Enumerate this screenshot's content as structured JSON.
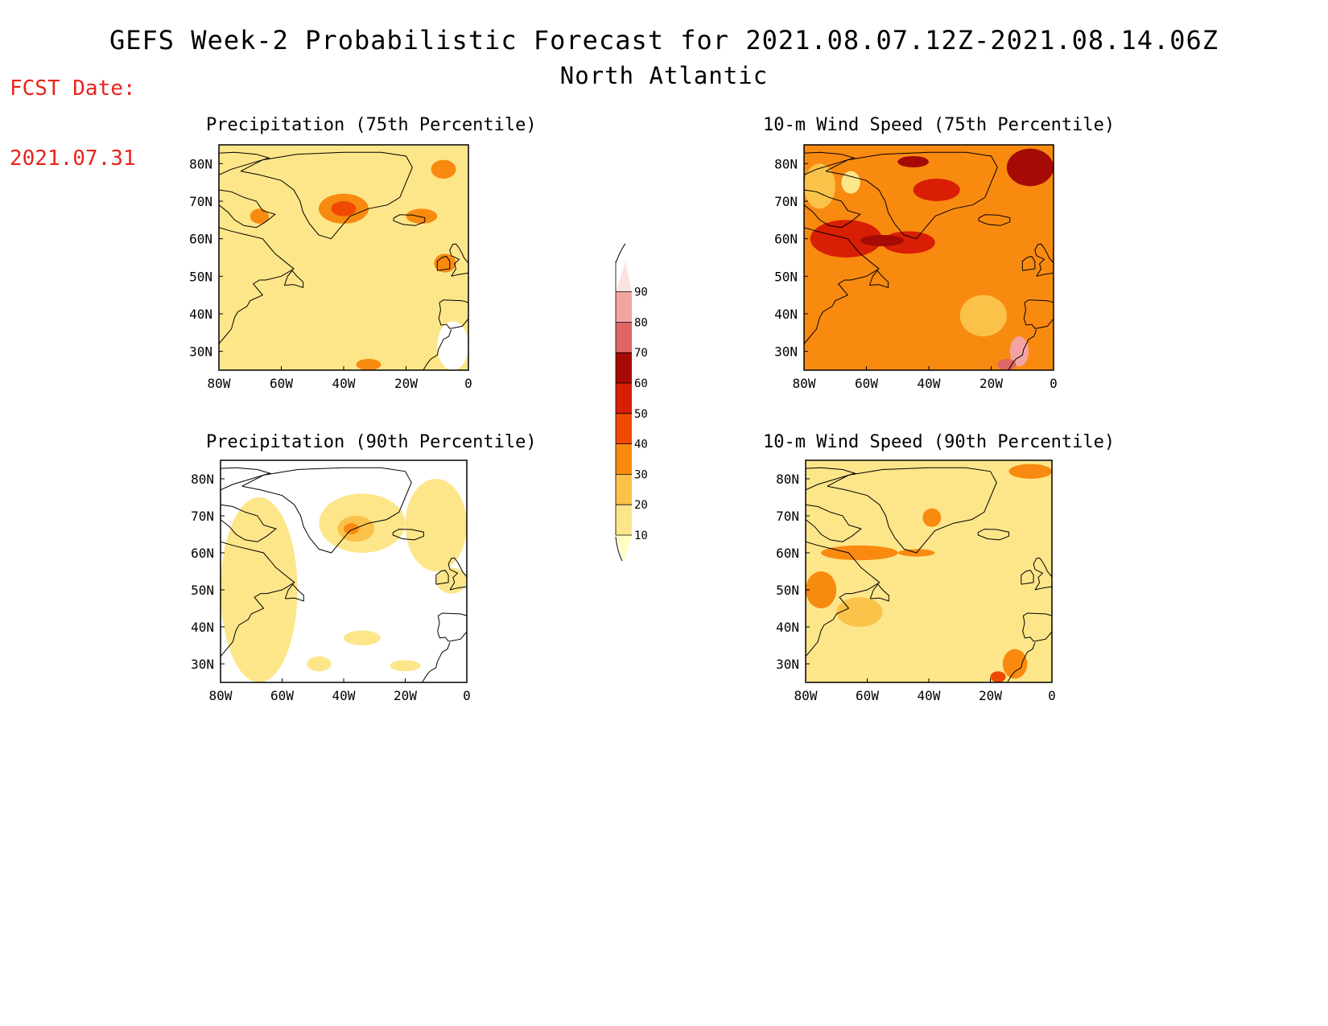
{
  "header": {
    "fcst_label": "FCST Date:",
    "fcst_date": "2021.07.31",
    "title": "GEFS Week-2 Probabilistic Forecast for 2021.08.07.12Z-2021.08.14.06Z",
    "region": "North Atlantic"
  },
  "axes": {
    "lat_labels": [
      "80N",
      "70N",
      "60N",
      "50N",
      "40N",
      "30N"
    ],
    "lat_values": [
      80,
      70,
      60,
      50,
      40,
      30
    ],
    "lon_labels": [
      "80W",
      "60W",
      "40W",
      "20W",
      "0"
    ],
    "lon_values": [
      -80,
      -60,
      -40,
      -20,
      0
    ],
    "lat_range": [
      25,
      85
    ],
    "lon_range": [
      -80,
      0
    ]
  },
  "colorbar": {
    "labels": [
      "10",
      "20",
      "30",
      "40",
      "50",
      "60",
      "70",
      "80",
      "90"
    ],
    "levels": [
      10,
      20,
      30,
      40,
      50,
      60,
      70,
      80,
      90
    ],
    "colors": [
      "#fffdc0",
      "#fde68a",
      "#fbc24a",
      "#f98a10",
      "#f04a02",
      "#d81e05",
      "#a50b04",
      "#e06666",
      "#f4a3a3",
      "#fde2e2"
    ]
  },
  "panels": {
    "precip75": {
      "title": "Precipitation (75th Percentile)",
      "base": "#fde68a",
      "regions": [
        {
          "lon": [
            -80,
            -50
          ],
          "lat": [
            40,
            60
          ],
          "level": 10
        },
        {
          "lon": [
            -55,
            -25
          ],
          "lat": [
            44,
            56
          ],
          "level": 10
        },
        {
          "lon": [
            -60,
            -20
          ],
          "lat": [
            33,
            40
          ],
          "level": 10
        },
        {
          "lon": [
            -80,
            -65
          ],
          "lat": [
            68,
            82
          ],
          "level": 10
        },
        {
          "lon": [
            -48,
            -32
          ],
          "lat": [
            64,
            72
          ],
          "level": 30
        },
        {
          "lon": [
            -44,
            -36
          ],
          "lat": [
            66,
            70
          ],
          "level": 40
        },
        {
          "lon": [
            -20,
            -10
          ],
          "lat": [
            64,
            68
          ],
          "level": 30
        },
        {
          "lon": [
            -12,
            -4
          ],
          "lat": [
            76,
            81
          ],
          "level": 30
        },
        {
          "lon": [
            -11,
            -4
          ],
          "lat": [
            51,
            56
          ],
          "level": 30
        },
        {
          "lon": [
            -70,
            -64
          ],
          "lat": [
            64,
            68
          ],
          "level": 30
        },
        {
          "lon": [
            -36,
            -28
          ],
          "lat": [
            25,
            28
          ],
          "level": 30
        },
        {
          "lon": [
            -10,
            0
          ],
          "lat": [
            25,
            38
          ],
          "level": 0
        }
      ]
    },
    "precip90": {
      "title": "Precipitation (90th Percentile)",
      "base": "#ffffff",
      "regions": [
        {
          "lon": [
            -80,
            -55
          ],
          "lat": [
            25,
            75
          ],
          "level": 10
        },
        {
          "lon": [
            -48,
            -20
          ],
          "lat": [
            60,
            76
          ],
          "level": 10
        },
        {
          "lon": [
            -20,
            0
          ],
          "lat": [
            55,
            80
          ],
          "level": 10
        },
        {
          "lon": [
            -42,
            -30
          ],
          "lat": [
            63,
            70
          ],
          "level": 20
        },
        {
          "lon": [
            -40,
            -35
          ],
          "lat": [
            65,
            68
          ],
          "level": 30
        },
        {
          "lon": [
            -40,
            -28
          ],
          "lat": [
            35,
            39
          ],
          "level": 10
        },
        {
          "lon": [
            -52,
            -44
          ],
          "lat": [
            28,
            32
          ],
          "level": 10
        },
        {
          "lon": [
            -25,
            -15
          ],
          "lat": [
            28,
            31
          ],
          "level": 10
        },
        {
          "lon": [
            -10,
            0
          ],
          "lat": [
            49,
            56
          ],
          "level": 10
        }
      ]
    },
    "wind75": {
      "title": "10-m Wind Speed (75th Percentile)",
      "base": "#f98a10",
      "regions": [
        {
          "lon": [
            -80,
            -60
          ],
          "lat": [
            25,
            42
          ],
          "level": 30
        },
        {
          "lon": [
            -55,
            -35
          ],
          "lat": [
            32,
            40
          ],
          "level": 30
        },
        {
          "lon": [
            -30,
            -15
          ],
          "lat": [
            34,
            45
          ],
          "level": 20
        },
        {
          "lon": [
            -78,
            -55
          ],
          "lat": [
            55,
            65
          ],
          "level": 50
        },
        {
          "lon": [
            -55,
            -38
          ],
          "lat": [
            56,
            62
          ],
          "level": 50
        },
        {
          "lon": [
            -62,
            -48
          ],
          "lat": [
            58,
            61
          ],
          "level": 60
        },
        {
          "lon": [
            -45,
            -30
          ],
          "lat": [
            70,
            76
          ],
          "level": 50
        },
        {
          "lon": [
            -15,
            0
          ],
          "lat": [
            74,
            84
          ],
          "level": 60
        },
        {
          "lon": [
            -50,
            -40
          ],
          "lat": [
            79,
            82
          ],
          "level": 60
        },
        {
          "lon": [
            -14,
            -8
          ],
          "lat": [
            26,
            34
          ],
          "level": 80
        },
        {
          "lon": [
            -18,
            -12
          ],
          "lat": [
            25,
            28
          ],
          "level": 70
        },
        {
          "lon": [
            -80,
            -70
          ],
          "lat": [
            68,
            80
          ],
          "level": 20
        },
        {
          "lon": [
            -68,
            -62
          ],
          "lat": [
            72,
            78
          ],
          "level": 10
        }
      ]
    },
    "wind90": {
      "title": "10-m Wind Speed (90th Percentile)",
      "base": "#fde68a",
      "regions": [
        {
          "lon": [
            -60,
            -30
          ],
          "lat": [
            25,
            38
          ],
          "level": 10
        },
        {
          "lon": [
            -45,
            -25
          ],
          "lat": [
            38,
            45
          ],
          "level": 10
        },
        {
          "lon": [
            -80,
            -70
          ],
          "lat": [
            66,
            82
          ],
          "level": 10
        },
        {
          "lon": [
            -75,
            -50
          ],
          "lat": [
            58,
            62
          ],
          "level": 30
        },
        {
          "lon": [
            -50,
            -38
          ],
          "lat": [
            59,
            61
          ],
          "level": 30
        },
        {
          "lon": [
            -42,
            -36
          ],
          "lat": [
            67,
            72
          ],
          "level": 30
        },
        {
          "lon": [
            -14,
            0
          ],
          "lat": [
            80,
            84
          ],
          "level": 30
        },
        {
          "lon": [
            -16,
            -8
          ],
          "lat": [
            26,
            34
          ],
          "level": 30
        },
        {
          "lon": [
            -20,
            -15
          ],
          "lat": [
            25,
            28
          ],
          "level": 40
        },
        {
          "lon": [
            -80,
            -70
          ],
          "lat": [
            45,
            55
          ],
          "level": 30
        },
        {
          "lon": [
            -70,
            -55
          ],
          "lat": [
            40,
            48
          ],
          "level": 20
        }
      ]
    }
  }
}
